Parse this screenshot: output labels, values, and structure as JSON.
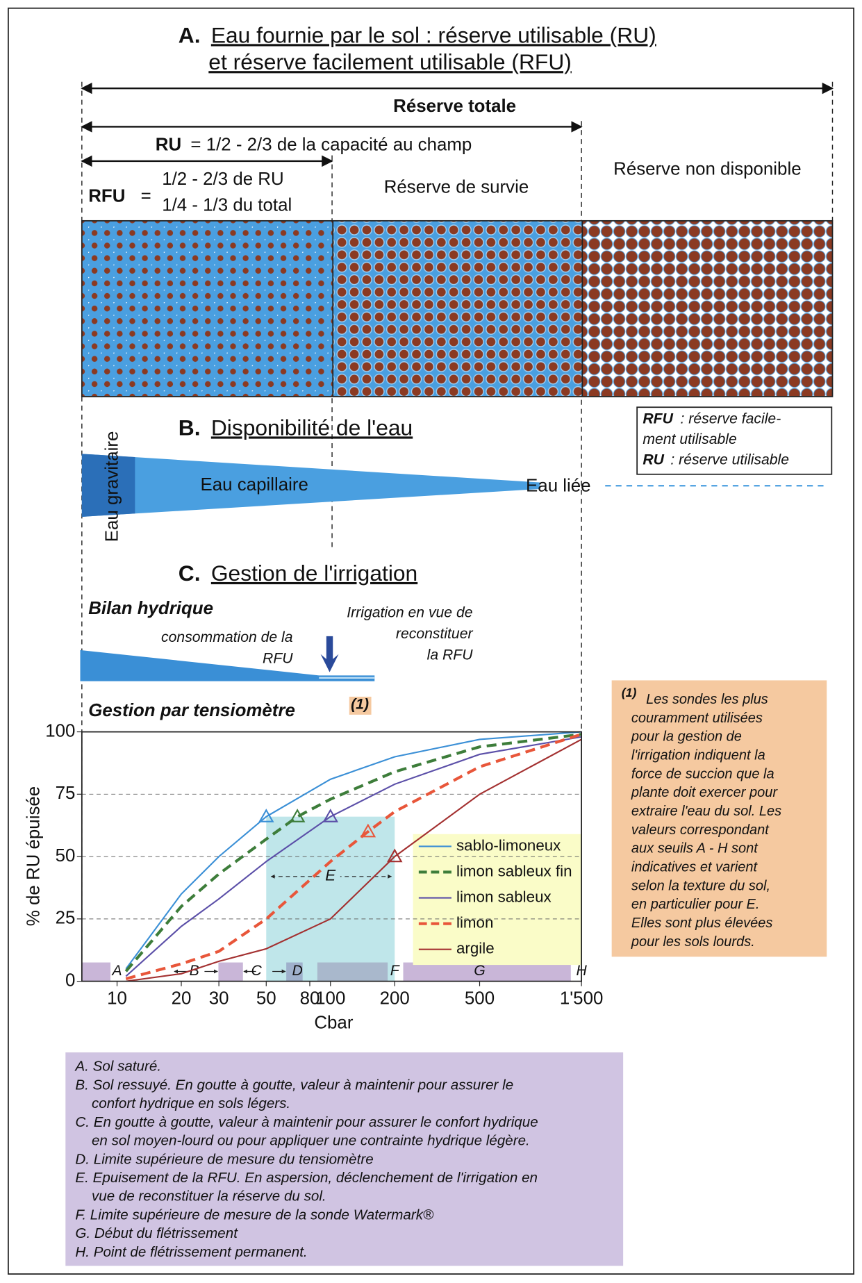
{
  "section_a": {
    "letter": "A.",
    "title_line1": "Eau fournie par le sol : réserve utilisable (RU)",
    "title_line2": "et réserve facilement utilisable (RFU)",
    "total": "Réserve totale",
    "ru_label": "RU",
    "ru_text": "= 1/2 - 2/3 de la capacité au champ",
    "rfu_label": "RFU",
    "rfu_eq": "=",
    "rfu_line1": "1/2 - 2/3 de RU",
    "rfu_line2": "1/4 - 1/3 du total",
    "survie": "Réserve de survie",
    "non_dispo": "Réserve non disponible"
  },
  "legend_box": {
    "rfu": "RFU",
    "rfu_def": ": réserve facile-",
    "rfu_def2": "ment utilisable",
    "ru": "RU",
    "ru_def": ": réserve utilisable"
  },
  "section_b": {
    "letter": "B.",
    "title": "Disponibilité de l'eau",
    "gravitaire": "Eau gravitaire",
    "capillaire": "Eau capillaire",
    "liee": "Eau liée"
  },
  "section_c": {
    "letter": "C.",
    "title": "Gestion de l'irrigation",
    "bilan": "Bilan hydrique",
    "consommation": [
      "consommation de la",
      "RFU"
    ],
    "irrigation": [
      "Irrigation en vue de",
      "reconstituer",
      "la RFU"
    ],
    "tensiometre": "Gestion par tensiomètre",
    "note_ref": "(1)"
  },
  "note": {
    "ref": "(1)",
    "lines": [
      "Les sondes les plus",
      "couramment utilisées",
      "pour la gestion de",
      "l'irrigation indiquent la",
      "force de succion que la",
      "plante doit exercer pour",
      "extraire l'eau du sol. Les",
      "valeurs correspondant",
      "aux seuils A - H sont",
      "indicatives et varient",
      "selon la texture du sol,",
      "en particulier pour E.",
      "Elles sont plus élevées",
      "pour les sols lourds."
    ]
  },
  "chart_data": {
    "type": "line",
    "y_label": "% de RU épuisée",
    "x_label": "Cbar",
    "xscale": "log",
    "xlim": [
      6.84,
      1500
    ],
    "ylim": [
      0,
      100
    ],
    "yticks": [
      0,
      25,
      50,
      75,
      100
    ],
    "xticks": [
      10,
      20,
      30,
      50,
      80,
      100,
      200,
      500,
      {
        "value": 1500,
        "label": "1'500"
      }
    ],
    "grid": true,
    "series": [
      {
        "name": "sablo-limoneux",
        "color": "#3a8fd6",
        "dash": false,
        "x": [
          11,
          20,
          30,
          50,
          100,
          200,
          500,
          1500
        ],
        "values": [
          5,
          35,
          50,
          66,
          81,
          90,
          97,
          100
        ],
        "marker": {
          "x": 50,
          "y": 66
        }
      },
      {
        "name": "limon sableux fin",
        "color": "#3d7d3a",
        "dash": true,
        "x": [
          11,
          20,
          30,
          50,
          70,
          100,
          200,
          500,
          1500
        ],
        "values": [
          4,
          30,
          43,
          57,
          66,
          73,
          84,
          94,
          99
        ],
        "marker": {
          "x": 70,
          "y": 66
        }
      },
      {
        "name": "limon sableux",
        "color": "#5b4fa8",
        "dash": false,
        "x": [
          11,
          20,
          30,
          50,
          100,
          200,
          500,
          1500
        ],
        "values": [
          2,
          22,
          33,
          48,
          66,
          79,
          91,
          98
        ],
        "marker": {
          "x": 100,
          "y": 66
        }
      },
      {
        "name": "limon",
        "color": "#e8563a",
        "dash": true,
        "x": [
          11,
          20,
          30,
          50,
          100,
          150,
          200,
          500,
          1500
        ],
        "values": [
          1,
          7,
          12,
          25,
          48,
          60,
          68,
          86,
          99
        ],
        "marker": {
          "x": 150,
          "y": 60
        }
      },
      {
        "name": "argile",
        "color": "#a33030",
        "dash": false,
        "x": [
          11,
          20,
          30,
          50,
          100,
          200,
          500,
          1500
        ],
        "values": [
          0,
          3,
          8,
          13,
          25,
          50,
          75,
          97
        ],
        "marker": {
          "x": 200,
          "y": 50
        }
      }
    ],
    "zones": [
      {
        "label": "A",
        "x": 10
      },
      {
        "label": "B",
        "x": 23
      },
      {
        "label": "C",
        "x": 45
      },
      {
        "label": "D",
        "x": 70
      },
      {
        "label": "F",
        "x": 200
      },
      {
        "label": "G",
        "x": 500
      },
      {
        "label": "H",
        "x": 1500
      }
    ],
    "e_range": {
      "label": "E",
      "from": 50,
      "to": 200,
      "y": 42,
      "top": 66
    }
  },
  "footnotes": [
    {
      "lines": [
        "A. Sol saturé."
      ]
    },
    {
      "lines": [
        "B. Sol ressuyé. En goutte à goutte, valeur à maintenir pour assurer le",
        "confort hydrique en sols légers."
      ]
    },
    {
      "lines": [
        "C. En goutte à goutte, valeur à maintenir pour assurer le confort hydrique",
        "en sol moyen-lourd ou pour appliquer une contrainte hydrique légère."
      ]
    },
    {
      "lines": [
        "D. Limite supérieure de mesure du tensiomètre"
      ]
    },
    {
      "lines": [
        "E. Epuisement de la RFU. En aspersion, déclenchement de l'irrigation en",
        "vue de reconstituer la réserve du sol."
      ]
    },
    {
      "lines": [
        "F. Limite supérieure de mesure de la sonde Watermark®"
      ]
    },
    {
      "lines": [
        "G. Début du flétrissement"
      ]
    },
    {
      "lines": [
        "H. Point de flétrissement permanent."
      ]
    }
  ]
}
